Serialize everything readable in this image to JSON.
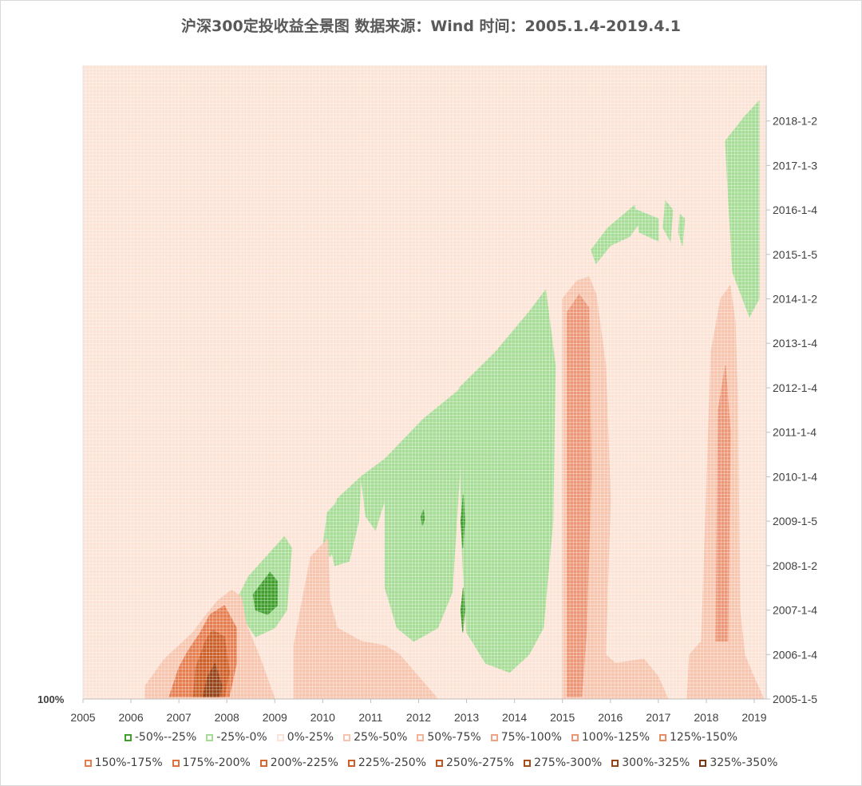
{
  "chart_data": {
    "type": "heatmap",
    "title": "沪深300定投收益全景图 数据来源：Wind 时间：2005.1.4-2019.4.1",
    "x_axis": {
      "ticks": [
        "2005",
        "2006",
        "2007",
        "2008",
        "2009",
        "2010",
        "2011",
        "2012",
        "2013",
        "2014",
        "2015",
        "2016",
        "2017",
        "2018",
        "2019"
      ],
      "range": [
        2005,
        2019.25
      ]
    },
    "y_axis": {
      "position": "right",
      "ticks": [
        "2005-1-5",
        "2006-1-4",
        "2007-1-4",
        "2008-1-2",
        "2009-1-5",
        "2010-1-4",
        "2011-1-4",
        "2012-1-4",
        "2013-1-4",
        "2014-1-2",
        "2015-1-5",
        "2016-1-4",
        "2017-1-3",
        "2018-1-2"
      ],
      "range": [
        2005,
        2019.25
      ]
    },
    "left_overlap_label": "100%",
    "grid": true,
    "legend_position": "bottom",
    "bands": [
      {
        "label": "-50%--25%",
        "color": "#3f9e2c"
      },
      {
        "label": "-25%-0%",
        "color": "#a6dc96"
      },
      {
        "label": "0%-25%",
        "color": "#fbe3d6"
      },
      {
        "label": "25%-50%",
        "color": "#f7c4ad"
      },
      {
        "label": "50%-75%",
        "color": "#f4b399"
      },
      {
        "label": "75%-100%",
        "color": "#f0a486"
      },
      {
        "label": "100%-125%",
        "color": "#ec9676"
      },
      {
        "label": "125%-150%",
        "color": "#e98a63"
      },
      {
        "label": "150%-175%",
        "color": "#e67d4f"
      },
      {
        "label": "175%-200%",
        "color": "#e0703c"
      },
      {
        "label": "200%-225%",
        "color": "#d8672f"
      },
      {
        "label": "225%-250%",
        "color": "#cc5f27"
      },
      {
        "label": "250%-275%",
        "color": "#bc5620"
      },
      {
        "label": "275%-300%",
        "color": "#a84c1b"
      },
      {
        "label": "300%-325%",
        "color": "#954317"
      },
      {
        "label": "325%-350%",
        "color": "#7a3612"
      }
    ],
    "regions": [
      {
        "band": 1,
        "points": [
          [
            2008.2,
            2007.2
          ],
          [
            2008.45,
            2007.75
          ],
          [
            2009.2,
            2008.65
          ],
          [
            2009.35,
            2008.4
          ],
          [
            2009.25,
            2007.0
          ],
          [
            2009.0,
            2006.6
          ],
          [
            2008.6,
            2006.4
          ],
          [
            2008.35,
            2006.8
          ]
        ]
      },
      {
        "band": 0,
        "points": [
          [
            2008.55,
            2007.35
          ],
          [
            2008.9,
            2007.85
          ],
          [
            2009.05,
            2007.65
          ],
          [
            2009.05,
            2007.1
          ],
          [
            2008.85,
            2006.9
          ],
          [
            2008.6,
            2007.0
          ]
        ]
      },
      {
        "band": 1,
        "points": [
          [
            2010.1,
            2009.2
          ],
          [
            2010.45,
            2009.6
          ],
          [
            2010.35,
            2008.6
          ],
          [
            2010.15,
            2008.2
          ],
          [
            2010.0,
            2008.4
          ]
        ]
      },
      {
        "band": 1,
        "points": [
          [
            2010.3,
            2009.5
          ],
          [
            2010.8,
            2010.0
          ],
          [
            2010.75,
            2009.0
          ],
          [
            2010.55,
            2008.1
          ],
          [
            2010.25,
            2008.0
          ],
          [
            2010.1,
            2008.8
          ]
        ]
      },
      {
        "band": 1,
        "points": [
          [
            2010.8,
            2010.0
          ],
          [
            2011.3,
            2010.4
          ],
          [
            2011.3,
            2009.5
          ],
          [
            2011.1,
            2008.8
          ],
          [
            2010.9,
            2009.1
          ]
        ]
      },
      {
        "band": 1,
        "points": [
          [
            2011.3,
            2010.4
          ],
          [
            2012.1,
            2011.3
          ],
          [
            2012.9,
            2012.0
          ],
          [
            2012.85,
            2010.0
          ],
          [
            2012.7,
            2007.4
          ],
          [
            2012.4,
            2006.6
          ],
          [
            2011.9,
            2006.3
          ],
          [
            2011.55,
            2006.6
          ],
          [
            2011.3,
            2007.5
          ]
        ]
      },
      {
        "band": 1,
        "points": [
          [
            2012.85,
            2012.0
          ],
          [
            2013.6,
            2012.8
          ],
          [
            2014.3,
            2013.7
          ],
          [
            2014.65,
            2014.2
          ],
          [
            2014.85,
            2012.5
          ],
          [
            2014.8,
            2009.0
          ],
          [
            2014.6,
            2006.6
          ],
          [
            2014.3,
            2006.0
          ],
          [
            2013.9,
            2005.6
          ],
          [
            2013.4,
            2005.8
          ],
          [
            2013.0,
            2006.5
          ],
          [
            2012.9,
            2008.5
          ]
        ]
      },
      {
        "band": 0,
        "points": [
          [
            2012.05,
            2009.1
          ],
          [
            2012.1,
            2009.25
          ],
          [
            2012.12,
            2009.05
          ],
          [
            2012.08,
            2008.9
          ]
        ]
      },
      {
        "band": 0,
        "points": [
          [
            2012.88,
            2009.0
          ],
          [
            2012.93,
            2009.6
          ],
          [
            2012.96,
            2009.0
          ],
          [
            2012.92,
            2008.4
          ]
        ]
      },
      {
        "band": 0,
        "points": [
          [
            2012.88,
            2007.0
          ],
          [
            2012.93,
            2007.5
          ],
          [
            2012.96,
            2007.0
          ],
          [
            2012.92,
            2006.5
          ]
        ]
      },
      {
        "band": 1,
        "points": [
          [
            2015.6,
            2015.1
          ],
          [
            2015.95,
            2015.6
          ],
          [
            2016.5,
            2016.1
          ],
          [
            2016.6,
            2015.7
          ],
          [
            2016.4,
            2015.4
          ],
          [
            2016.0,
            2015.2
          ],
          [
            2015.7,
            2014.8
          ]
        ]
      },
      {
        "band": 1,
        "points": [
          [
            2016.55,
            2016.0
          ],
          [
            2017.0,
            2015.8
          ],
          [
            2017.0,
            2015.3
          ],
          [
            2016.6,
            2015.5
          ]
        ]
      },
      {
        "band": 1,
        "points": [
          [
            2017.15,
            2016.2
          ],
          [
            2017.3,
            2016.0
          ],
          [
            2017.25,
            2015.3
          ],
          [
            2017.1,
            2015.6
          ]
        ]
      },
      {
        "band": 1,
        "points": [
          [
            2017.45,
            2015.9
          ],
          [
            2017.55,
            2015.8
          ],
          [
            2017.5,
            2015.2
          ],
          [
            2017.42,
            2015.5
          ]
        ]
      },
      {
        "band": 1,
        "points": [
          [
            2018.4,
            2017.55
          ],
          [
            2018.8,
            2018.1
          ],
          [
            2019.1,
            2018.45
          ],
          [
            2019.1,
            2017.0
          ],
          [
            2019.1,
            2014.0
          ],
          [
            2018.9,
            2013.6
          ],
          [
            2018.55,
            2014.6
          ],
          [
            2018.45,
            2016.5
          ]
        ]
      },
      {
        "band": 3,
        "points": [
          [
            2006.3,
            2005.0
          ],
          [
            2006.3,
            2005.3
          ],
          [
            2006.7,
            2005.9
          ],
          [
            2007.0,
            2006.2
          ],
          [
            2007.3,
            2006.5
          ],
          [
            2007.5,
            2006.8
          ],
          [
            2007.8,
            2007.2
          ],
          [
            2008.1,
            2007.45
          ],
          [
            2008.3,
            2007.3
          ],
          [
            2008.4,
            2006.7
          ],
          [
            2008.7,
            2005.9
          ],
          [
            2009.0,
            2005.0
          ]
        ]
      },
      {
        "band": 8,
        "points": [
          [
            2006.8,
            2005.05
          ],
          [
            2007.0,
            2005.7
          ],
          [
            2007.2,
            2006.1
          ],
          [
            2007.45,
            2006.5
          ],
          [
            2007.65,
            2006.9
          ],
          [
            2007.95,
            2007.1
          ],
          [
            2008.2,
            2006.6
          ],
          [
            2008.2,
            2005.8
          ],
          [
            2008.05,
            2005.05
          ]
        ]
      },
      {
        "band": 11,
        "points": [
          [
            2007.3,
            2005.05
          ],
          [
            2007.35,
            2005.7
          ],
          [
            2007.55,
            2006.3
          ],
          [
            2007.7,
            2006.55
          ],
          [
            2007.95,
            2006.4
          ],
          [
            2008.05,
            2005.6
          ],
          [
            2007.95,
            2005.05
          ]
        ]
      },
      {
        "band": 14,
        "points": [
          [
            2007.5,
            2005.05
          ],
          [
            2007.6,
            2005.5
          ],
          [
            2007.75,
            2005.8
          ],
          [
            2007.9,
            2005.3
          ],
          [
            2007.85,
            2005.05
          ]
        ]
      },
      {
        "band": 3,
        "points": [
          [
            2009.4,
            2005.0
          ],
          [
            2009.4,
            2006.2
          ],
          [
            2009.5,
            2006.8
          ],
          [
            2009.75,
            2008.2
          ],
          [
            2010.1,
            2008.6
          ],
          [
            2010.15,
            2007.2
          ],
          [
            2010.3,
            2006.6
          ],
          [
            2010.8,
            2006.3
          ],
          [
            2011.3,
            2006.2
          ],
          [
            2011.6,
            2006.0
          ],
          [
            2012.0,
            2005.5
          ],
          [
            2012.4,
            2005.0
          ]
        ]
      },
      {
        "band": 3,
        "points": [
          [
            2015.0,
            2005.0
          ],
          [
            2015.0,
            2014.0
          ],
          [
            2015.3,
            2014.4
          ],
          [
            2015.55,
            2014.5
          ],
          [
            2015.7,
            2014.1
          ],
          [
            2015.9,
            2012.5
          ],
          [
            2016.0,
            2009.5
          ],
          [
            2015.9,
            2006.0
          ],
          [
            2016.1,
            2005.8
          ],
          [
            2016.7,
            2005.9
          ],
          [
            2017.0,
            2005.5
          ],
          [
            2017.2,
            2005.0
          ]
        ]
      },
      {
        "band": 3,
        "points": [
          [
            2017.6,
            2005.0
          ],
          [
            2017.65,
            2006.0
          ],
          [
            2017.9,
            2006.3
          ],
          [
            2018.1,
            2012.8
          ],
          [
            2018.3,
            2014.0
          ],
          [
            2018.5,
            2014.3
          ],
          [
            2018.6,
            2013.5
          ],
          [
            2018.65,
            2011.8
          ],
          [
            2018.7,
            2007.0
          ],
          [
            2018.8,
            2006.0
          ],
          [
            2018.95,
            2005.6
          ],
          [
            2019.2,
            2005.0
          ]
        ]
      },
      {
        "band": 6,
        "points": [
          [
            2015.1,
            2005.05
          ],
          [
            2015.1,
            2013.7
          ],
          [
            2015.35,
            2014.1
          ],
          [
            2015.55,
            2013.8
          ],
          [
            2015.6,
            2010.0
          ],
          [
            2015.5,
            2006.5
          ],
          [
            2015.4,
            2005.05
          ]
        ]
      },
      {
        "band": 6,
        "points": [
          [
            2018.2,
            2006.3
          ],
          [
            2018.25,
            2011.5
          ],
          [
            2018.4,
            2012.5
          ],
          [
            2018.5,
            2011.0
          ],
          [
            2018.45,
            2006.3
          ]
        ]
      }
    ]
  }
}
